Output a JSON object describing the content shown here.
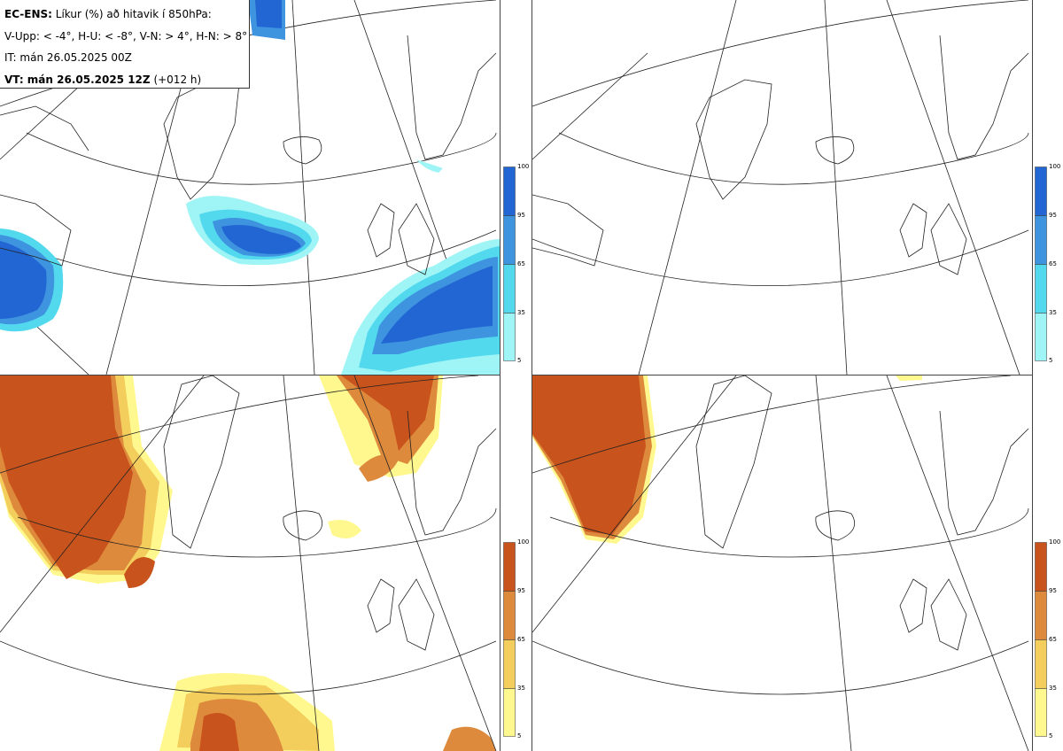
{
  "header": {
    "line1_bold": "EC-ENS:",
    "line1_rest": "Líkur (%) að hitavik í 850hPa:",
    "line2": "V-Upp: < -4°, H-U: < -8°, V-N: > 4°, H-N: > 8°",
    "line3": "IT: mán 26.05.2025 00Z",
    "line4_bold": "VT: mán 26.05.2025 12Z",
    "line4_rest": "(+012 h)"
  },
  "colorbars": {
    "ticks": [
      "100",
      "95",
      "65",
      "35",
      "5"
    ],
    "cold_colors": [
      "#9ff5f5",
      "#52d9ee",
      "#3f94e0",
      "#2266d3"
    ],
    "warm_colors": [
      "#fff88e",
      "#f3ce5c",
      "#de8a3c",
      "#c8531c"
    ]
  },
  "panels": [
    {
      "id": "V-Upp",
      "kind": "cold"
    },
    {
      "id": "H-U",
      "kind": "cold"
    },
    {
      "id": "V-N",
      "kind": "warm"
    },
    {
      "id": "H-N",
      "kind": "warm"
    }
  ]
}
